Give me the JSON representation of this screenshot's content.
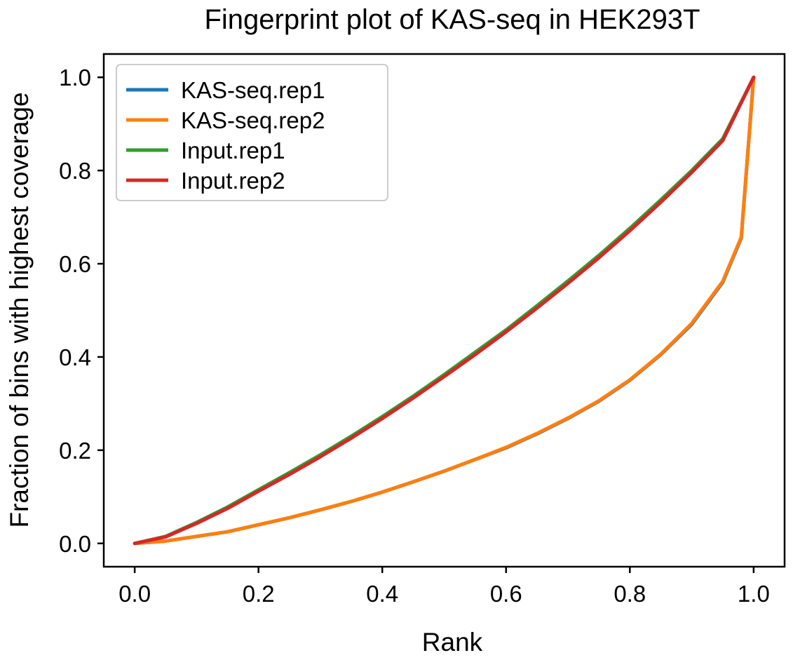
{
  "chart_data": {
    "type": "line",
    "title": "Fingerprint plot of KAS-seq in HEK293T",
    "xlabel": "Rank",
    "ylabel": "Fraction of bins with highest coverage",
    "xlim": [
      -0.05,
      1.05
    ],
    "ylim": [
      -0.05,
      1.05
    ],
    "xticks": [
      0.0,
      0.2,
      0.4,
      0.6,
      0.8,
      1.0
    ],
    "xtick_labels": [
      "0.0",
      "0.2",
      "0.4",
      "0.6",
      "0.8",
      "1.0"
    ],
    "yticks": [
      0.0,
      0.2,
      0.4,
      0.6,
      0.8,
      1.0
    ],
    "ytick_labels": [
      "0.0",
      "0.2",
      "0.4",
      "0.6",
      "0.8",
      "1.0"
    ],
    "grid": false,
    "legend_position": "top-left",
    "series": [
      {
        "name": "KAS-seq.rep1",
        "color": "#1f77b4",
        "x": [
          0.0,
          0.05,
          0.1,
          0.15,
          0.2,
          0.25,
          0.3,
          0.35,
          0.4,
          0.45,
          0.5,
          0.55,
          0.6,
          0.65,
          0.7,
          0.75,
          0.8,
          0.85,
          0.9,
          0.95,
          0.98,
          1.0
        ],
        "y": [
          0.0,
          0.005,
          0.015,
          0.025,
          0.04,
          0.055,
          0.072,
          0.09,
          0.11,
          0.132,
          0.155,
          0.18,
          0.205,
          0.235,
          0.268,
          0.305,
          0.35,
          0.405,
          0.47,
          0.56,
          0.655,
          1.0
        ]
      },
      {
        "name": "KAS-seq.rep2",
        "color": "#ff7f0e",
        "x": [
          0.0,
          0.05,
          0.1,
          0.15,
          0.2,
          0.25,
          0.3,
          0.35,
          0.4,
          0.45,
          0.5,
          0.55,
          0.6,
          0.65,
          0.7,
          0.75,
          0.8,
          0.85,
          0.9,
          0.95,
          0.98,
          1.0
        ],
        "y": [
          0.0,
          0.005,
          0.015,
          0.025,
          0.04,
          0.055,
          0.072,
          0.09,
          0.11,
          0.132,
          0.155,
          0.18,
          0.206,
          0.236,
          0.269,
          0.306,
          0.351,
          0.406,
          0.472,
          0.562,
          0.657,
          1.0
        ]
      },
      {
        "name": "Input.rep1",
        "color": "#2ca02c",
        "x": [
          0.0,
          0.05,
          0.1,
          0.15,
          0.2,
          0.25,
          0.3,
          0.35,
          0.4,
          0.45,
          0.5,
          0.55,
          0.6,
          0.65,
          0.7,
          0.75,
          0.8,
          0.85,
          0.9,
          0.95,
          1.0
        ],
        "y": [
          0.0,
          0.015,
          0.045,
          0.078,
          0.115,
          0.152,
          0.19,
          0.23,
          0.272,
          0.316,
          0.362,
          0.41,
          0.458,
          0.51,
          0.563,
          0.618,
          0.676,
          0.737,
          0.8,
          0.868,
          1.0
        ]
      },
      {
        "name": "Input.rep2",
        "color": "#d62728",
        "x": [
          0.0,
          0.05,
          0.1,
          0.15,
          0.2,
          0.25,
          0.3,
          0.35,
          0.4,
          0.45,
          0.5,
          0.55,
          0.6,
          0.65,
          0.7,
          0.75,
          0.8,
          0.85,
          0.9,
          0.95,
          1.0
        ],
        "y": [
          0.0,
          0.014,
          0.043,
          0.075,
          0.112,
          0.148,
          0.186,
          0.226,
          0.268,
          0.312,
          0.358,
          0.405,
          0.454,
          0.505,
          0.558,
          0.613,
          0.671,
          0.732,
          0.796,
          0.864,
          1.0
        ]
      }
    ]
  }
}
